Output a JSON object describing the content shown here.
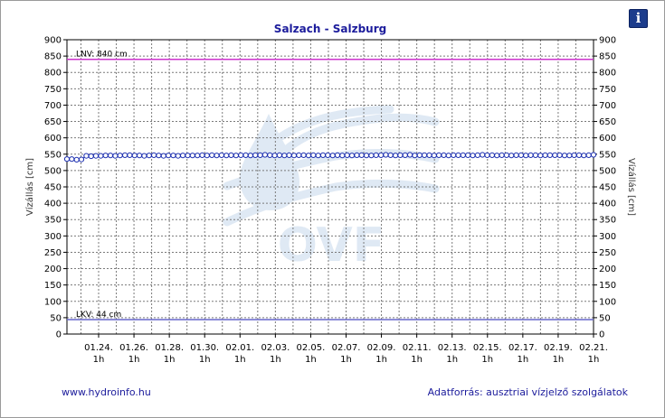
{
  "info_icon": "info-icon",
  "footer": {
    "website": "www.hydroinfo.hu",
    "source": "Adatforrás: ausztriai vízjelző szolgálatok"
  },
  "watermark": {
    "text": "OVF",
    "color": "#dfe9f4"
  },
  "colors": {
    "series": "#1c2fb0",
    "marker_fill": "#ffffff",
    "lnv_line": "#cc33cc",
    "lkv_line": "#6666cc",
    "title": "#1c1c9c"
  },
  "chart_data": {
    "type": "line",
    "title": "Salzach - Salzburg",
    "ylabel_left": "Vízállás [cm]",
    "ylabel_right": "Vízállás [cm]",
    "ylim": [
      0,
      900
    ],
    "yticks": [
      0,
      50,
      100,
      150,
      200,
      250,
      300,
      350,
      400,
      450,
      500,
      550,
      600,
      650,
      700,
      750,
      800,
      850,
      900
    ],
    "grid": true,
    "x_tick_dates": [
      "01.24.",
      "01.26.",
      "01.28.",
      "01.30.",
      "02.01.",
      "02.03.",
      "02.05.",
      "02.07.",
      "02.09.",
      "02.11.",
      "02.13.",
      "02.15.",
      "02.17.",
      "02.19.",
      "02.21."
    ],
    "x_tick_hours": [
      "1h",
      "1h",
      "1h",
      "1h",
      "1h",
      "1h",
      "1h",
      "1h",
      "1h",
      "1h",
      "1h",
      "1h",
      "1h",
      "1h",
      "1h"
    ],
    "reference_lines": [
      {
        "label": "LNV: 840 cm",
        "value": 840
      },
      {
        "label": "LKV: 44 cm",
        "value": 44
      }
    ],
    "series": [
      {
        "values": [
          535,
          535,
          533,
          534,
          545,
          544,
          545,
          545,
          546,
          546,
          545,
          546,
          547,
          547,
          546,
          546,
          545,
          546,
          547,
          546,
          545,
          546,
          546,
          545,
          546,
          546,
          546,
          546,
          547,
          546,
          547,
          546,
          547,
          546,
          547,
          546,
          547,
          547,
          546,
          547,
          547,
          548,
          547,
          546,
          547,
          546,
          547,
          546,
          547,
          547,
          546,
          547,
          546,
          547,
          547,
          546,
          547,
          546,
          547,
          546,
          547,
          547,
          546,
          546,
          547,
          547,
          548,
          547,
          546,
          547,
          547,
          548,
          546,
          547,
          547,
          547,
          546,
          547,
          547,
          546,
          547,
          547,
          547,
          547,
          546,
          547,
          548,
          547,
          547,
          546,
          547,
          547,
          546,
          547,
          547,
          546,
          547,
          547,
          546,
          547,
          547,
          547,
          547,
          546,
          546,
          547,
          547,
          546,
          547,
          548
        ]
      }
    ]
  }
}
